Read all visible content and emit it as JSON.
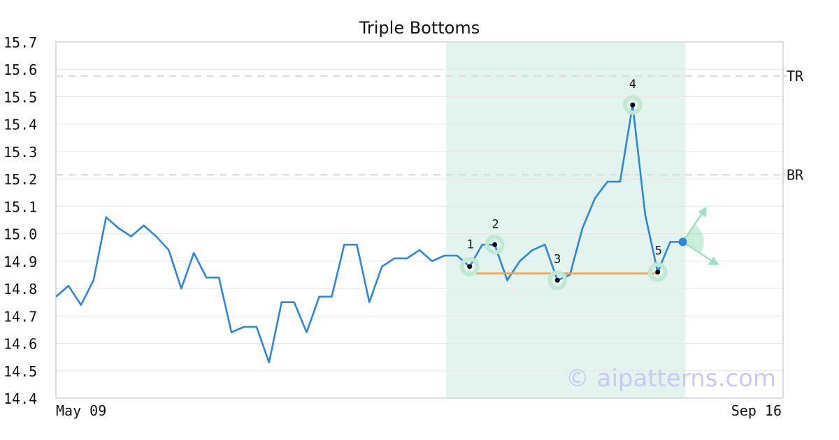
{
  "chart_data": {
    "type": "line",
    "title": "Triple Bottoms",
    "ylim": [
      14.4,
      15.7
    ],
    "y_ticks": [
      "14.4",
      "14.5",
      "14.6",
      "14.7",
      "14.8",
      "14.9",
      "15.0",
      "15.1",
      "15.2",
      "15.3",
      "15.4",
      "15.5",
      "15.6",
      "15.7"
    ],
    "x_labels": [
      "May 09",
      "Sep 16"
    ],
    "grid": true,
    "series": [
      {
        "values": [
          14.77,
          14.81,
          14.74,
          14.83,
          15.06,
          15.02,
          14.99,
          15.03,
          14.99,
          14.94,
          14.8,
          14.93,
          14.84,
          14.84,
          14.64,
          14.66,
          14.66,
          14.53,
          14.75,
          14.75,
          14.64,
          14.77,
          14.77,
          14.96,
          14.96,
          14.75,
          14.88,
          14.91,
          14.91,
          14.94,
          14.9,
          14.92,
          14.92,
          14.88,
          14.96,
          14.96,
          14.83,
          14.9,
          14.94,
          14.96,
          14.83,
          14.85,
          15.02,
          15.13,
          15.19,
          15.19,
          15.47,
          15.07,
          14.86,
          14.97,
          14.97
        ]
      }
    ],
    "pattern_region": {
      "start_index": 31,
      "end_index": 50
    },
    "reference_lines": [
      {
        "label": "TR",
        "value": 15.575
      },
      {
        "label": "BR",
        "value": 15.215
      }
    ],
    "support_line": {
      "value": 14.855,
      "start_index": 33,
      "end_index": 48
    },
    "pattern_points": [
      {
        "label": "1",
        "index": 33,
        "value": 14.88
      },
      {
        "label": "2",
        "index": 35,
        "value": 14.96
      },
      {
        "label": "3",
        "index": 40,
        "value": 14.83
      },
      {
        "label": "4",
        "index": 46,
        "value": 15.47
      },
      {
        "label": "5",
        "index": 48,
        "value": 14.86
      }
    ],
    "current_point": {
      "index": 50,
      "value": 14.97
    },
    "colors": {
      "line": "#2e86de",
      "support": "#f0a050",
      "highlight": "#e3f4ee",
      "marker_ring": "#bfe9d4",
      "arrow": "#9ee0bf",
      "reference": "#dddddd",
      "grid": "#e6e6e6",
      "frame": "#dddddd"
    }
  },
  "watermark": "© aipatterns.com"
}
